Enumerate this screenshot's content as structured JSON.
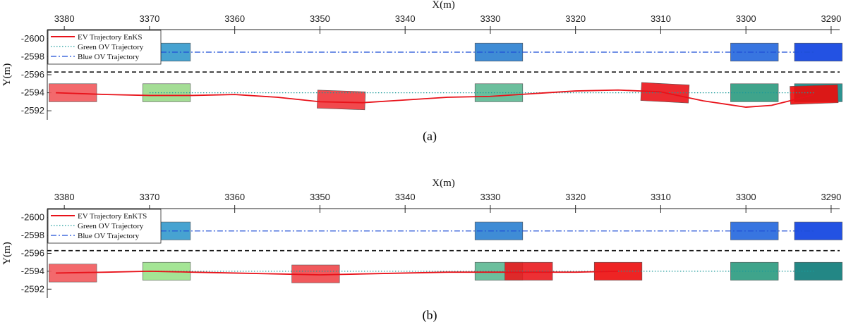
{
  "figure": {
    "captions": [
      "(a)",
      "(b)"
    ]
  },
  "chart_data": [
    {
      "type": "line",
      "caption": "(a)",
      "xlabel": "X(m)",
      "ylabel": "Y(m)",
      "xlim": [
        3289,
        3382
      ],
      "ylim": [
        -2601,
        -2591
      ],
      "x_reversed": true,
      "y_reversed": true,
      "x_axis_position": "top",
      "x_ticks": [
        3380,
        3370,
        3360,
        3350,
        3340,
        3330,
        3320,
        3310,
        3300,
        3290
      ],
      "y_ticks": [
        -2600,
        -2598,
        -2596,
        -2594,
        -2592
      ],
      "x_tick_labels": [
        "3380",
        "3370",
        "3360",
        "3350",
        "3340",
        "3330",
        "3320",
        "3310",
        "3300",
        "3290"
      ],
      "y_tick_labels": [
        "-2600",
        "-2598",
        "-2596",
        "-2594",
        "-2592"
      ],
      "lane_divider_y": -2596.3,
      "legend": {
        "position": "top-left",
        "entries": [
          "EV Trajectory EnKS",
          "Green OV Trajectory",
          "Blue OV Trajectory"
        ]
      },
      "series": [
        {
          "name": "EV Trajectory EnKS",
          "style": "solid",
          "color": "#e8121a",
          "x": [
            3381,
            3375,
            3370,
            3365,
            3360,
            3355,
            3350,
            3345,
            3340,
            3335,
            3330,
            3325,
            3320,
            3315,
            3310,
            3305,
            3300,
            3297,
            3294,
            3292
          ],
          "y": [
            -2594.0,
            -2593.8,
            -2593.7,
            -2593.7,
            -2593.8,
            -2593.5,
            -2593.0,
            -2592.9,
            -2593.2,
            -2593.5,
            -2593.6,
            -2593.9,
            -2594.2,
            -2594.3,
            -2594.1,
            -2593.1,
            -2592.4,
            -2592.6,
            -2593.3,
            -2593.8
          ]
        },
        {
          "name": "Green OV Trajectory",
          "style": "dotted",
          "color": "#1a9a9a",
          "x": [
            3370,
            3292
          ],
          "y": [
            -2594.0,
            -2594.0
          ]
        },
        {
          "name": "Blue OV Trajectory",
          "style": "dashdot",
          "color": "#1f4fd6",
          "x": [
            3370,
            3292
          ],
          "y": [
            -2598.5,
            -2598.5
          ]
        }
      ],
      "vehicles": [
        {
          "x": 3379,
          "y": -2594.0,
          "angle": 0,
          "color": "#f2595c"
        },
        {
          "x": 3368,
          "y": -2594.0,
          "angle": 0,
          "color": "#9ad98a"
        },
        {
          "x": 3368,
          "y": -2598.5,
          "angle": 0,
          "color": "#3399cc"
        },
        {
          "x": 3347.5,
          "y": -2593.2,
          "angle": 2,
          "color": "#f0353a"
        },
        {
          "x": 3329,
          "y": -2594.0,
          "angle": 0,
          "color": "#5cb892"
        },
        {
          "x": 3329,
          "y": -2598.5,
          "angle": 0,
          "color": "#2a7fd0"
        },
        {
          "x": 3309.5,
          "y": -2594.0,
          "angle": 3,
          "color": "#ea141a"
        },
        {
          "x": 3299,
          "y": -2594.0,
          "angle": 0,
          "color": "#2a9a7e"
        },
        {
          "x": 3299,
          "y": -2598.5,
          "angle": 0,
          "color": "#2266dd"
        },
        {
          "x": 3291.5,
          "y": -2594.0,
          "angle": 0,
          "color": "#158a86"
        },
        {
          "x": 3291.5,
          "y": -2598.5,
          "angle": 0,
          "color": "#0b3fe0"
        },
        {
          "x": 3292,
          "y": -2593.8,
          "angle": -2,
          "color": "#ee0a0a"
        }
      ]
    },
    {
      "type": "line",
      "caption": "(b)",
      "xlabel": "X(m)",
      "ylabel": "Y(m)",
      "xlim": [
        3289,
        3382
      ],
      "ylim": [
        -2601,
        -2591
      ],
      "x_reversed": true,
      "y_reversed": true,
      "x_axis_position": "top",
      "x_ticks": [
        3380,
        3370,
        3360,
        3350,
        3340,
        3330,
        3320,
        3310,
        3300,
        3290
      ],
      "y_ticks": [
        -2600,
        -2598,
        -2596,
        -2594,
        -2592
      ],
      "x_tick_labels": [
        "3380",
        "3370",
        "3360",
        "3350",
        "3340",
        "3330",
        "3320",
        "3310",
        "3300",
        "3290"
      ],
      "y_tick_labels": [
        "-2600",
        "-2598",
        "-2596",
        "-2594",
        "-2592"
      ],
      "lane_divider_y": -2596.3,
      "legend": {
        "position": "top-left",
        "entries": [
          "EV Trajectory EnKTS",
          "Green OV Trajectory",
          "Blue OV Trajectory"
        ]
      },
      "series": [
        {
          "name": "EV Trajectory EnKTS",
          "style": "solid",
          "color": "#e8121a",
          "x": [
            3381,
            3375,
            3370,
            3365,
            3360,
            3355,
            3350,
            3345,
            3340,
            3335,
            3330,
            3325,
            3320,
            3315
          ],
          "y": [
            -2593.8,
            -2593.9,
            -2594.0,
            -2593.9,
            -2593.8,
            -2593.7,
            -2593.6,
            -2593.7,
            -2593.8,
            -2593.9,
            -2593.9,
            -2593.9,
            -2593.9,
            -2594.0
          ]
        },
        {
          "name": "Green OV Trajectory",
          "style": "dotted",
          "color": "#1a9a9a",
          "x": [
            3370,
            3292
          ],
          "y": [
            -2594.0,
            -2594.0
          ]
        },
        {
          "name": "Blue OV Trajectory",
          "style": "dashdot",
          "color": "#1f4fd6",
          "x": [
            3370,
            3292
          ],
          "y": [
            -2598.5,
            -2598.5
          ]
        }
      ],
      "vehicles": [
        {
          "x": 3379,
          "y": -2593.8,
          "angle": 0,
          "color": "#f2595c"
        },
        {
          "x": 3368,
          "y": -2594.0,
          "angle": 0,
          "color": "#9ae28a"
        },
        {
          "x": 3368,
          "y": -2598.5,
          "angle": 0,
          "color": "#3399cc"
        },
        {
          "x": 3350.5,
          "y": -2593.7,
          "angle": 0,
          "color": "#f0474a"
        },
        {
          "x": 3329,
          "y": -2594.0,
          "angle": 0,
          "color": "#5cb892"
        },
        {
          "x": 3329,
          "y": -2598.5,
          "angle": 0,
          "color": "#2a7fd0"
        },
        {
          "x": 3325.5,
          "y": -2594.0,
          "angle": 0,
          "color": "#ea1a1e"
        },
        {
          "x": 3315,
          "y": -2594.0,
          "angle": 0,
          "color": "#ec0c0c"
        },
        {
          "x": 3299,
          "y": -2594.0,
          "angle": 0,
          "color": "#2a9a7e"
        },
        {
          "x": 3299,
          "y": -2598.5,
          "angle": 0,
          "color": "#2266dd"
        },
        {
          "x": 3291.5,
          "y": -2594.0,
          "angle": 0,
          "color": "#0b7a78"
        },
        {
          "x": 3291.5,
          "y": -2598.5,
          "angle": 0,
          "color": "#0b3fe0"
        }
      ]
    }
  ]
}
